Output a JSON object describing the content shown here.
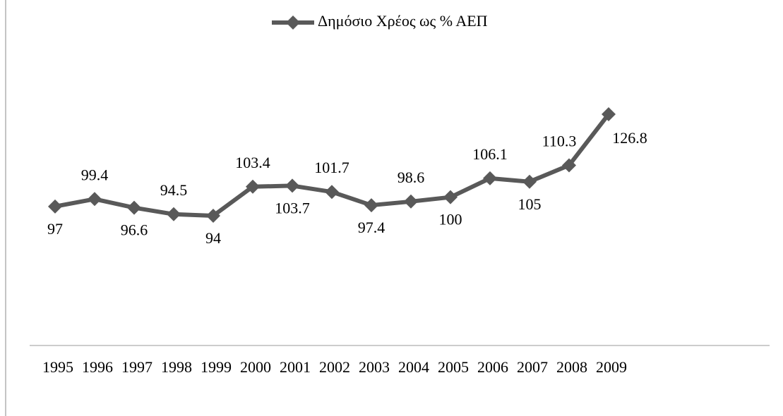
{
  "chart_data": {
    "type": "line",
    "categories": [
      "1995",
      "1996",
      "1997",
      "1998",
      "1999",
      "2000",
      "2001",
      "2002",
      "2003",
      "2004",
      "2005",
      "2006",
      "2007",
      "2008",
      "2009"
    ],
    "series": [
      {
        "name": "Δημόσιο Χρέος ως % ΑΕΠ",
        "color": "#595959",
        "values": [
          97,
          99.4,
          96.6,
          94.5,
          94,
          103.4,
          103.7,
          101.7,
          97.4,
          98.6,
          100,
          106.1,
          105,
          110.3,
          126.8
        ]
      }
    ]
  }
}
